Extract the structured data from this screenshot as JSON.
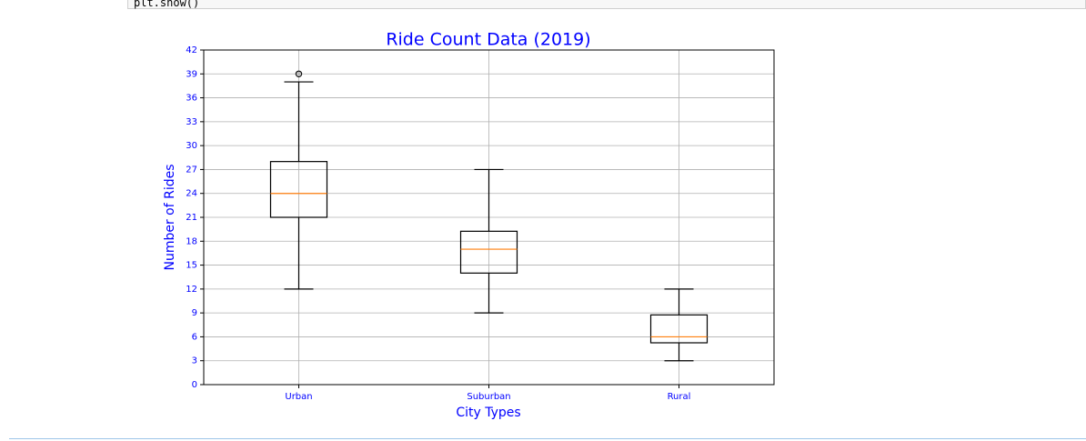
{
  "code": "plt.show()",
  "chart_data": {
    "type": "box",
    "title": "Ride Count Data (2019)",
    "xlabel": "City Types",
    "ylabel": "Number of Rides",
    "categories": [
      "Urban",
      "Suburban",
      "Rural"
    ],
    "boxes": [
      {
        "whislo": 12,
        "q1": 21,
        "med": 24,
        "q3": 28,
        "whishi": 38,
        "fliers": [
          39
        ]
      },
      {
        "whislo": 9,
        "q1": 14,
        "med": 17,
        "q3": 19.25,
        "whishi": 27,
        "fliers": []
      },
      {
        "whislo": 3,
        "q1": 5.25,
        "med": 6,
        "q3": 8.75,
        "whishi": 12,
        "fliers": []
      }
    ],
    "color": "#000000",
    "median_color": "#ff7f0e",
    "text_color": "#0000ff",
    "ylim": [
      0,
      42
    ],
    "yticks": [
      0,
      3,
      6,
      9,
      12,
      15,
      18,
      21,
      24,
      27,
      30,
      33,
      36,
      39,
      42
    ],
    "grid": true
  }
}
